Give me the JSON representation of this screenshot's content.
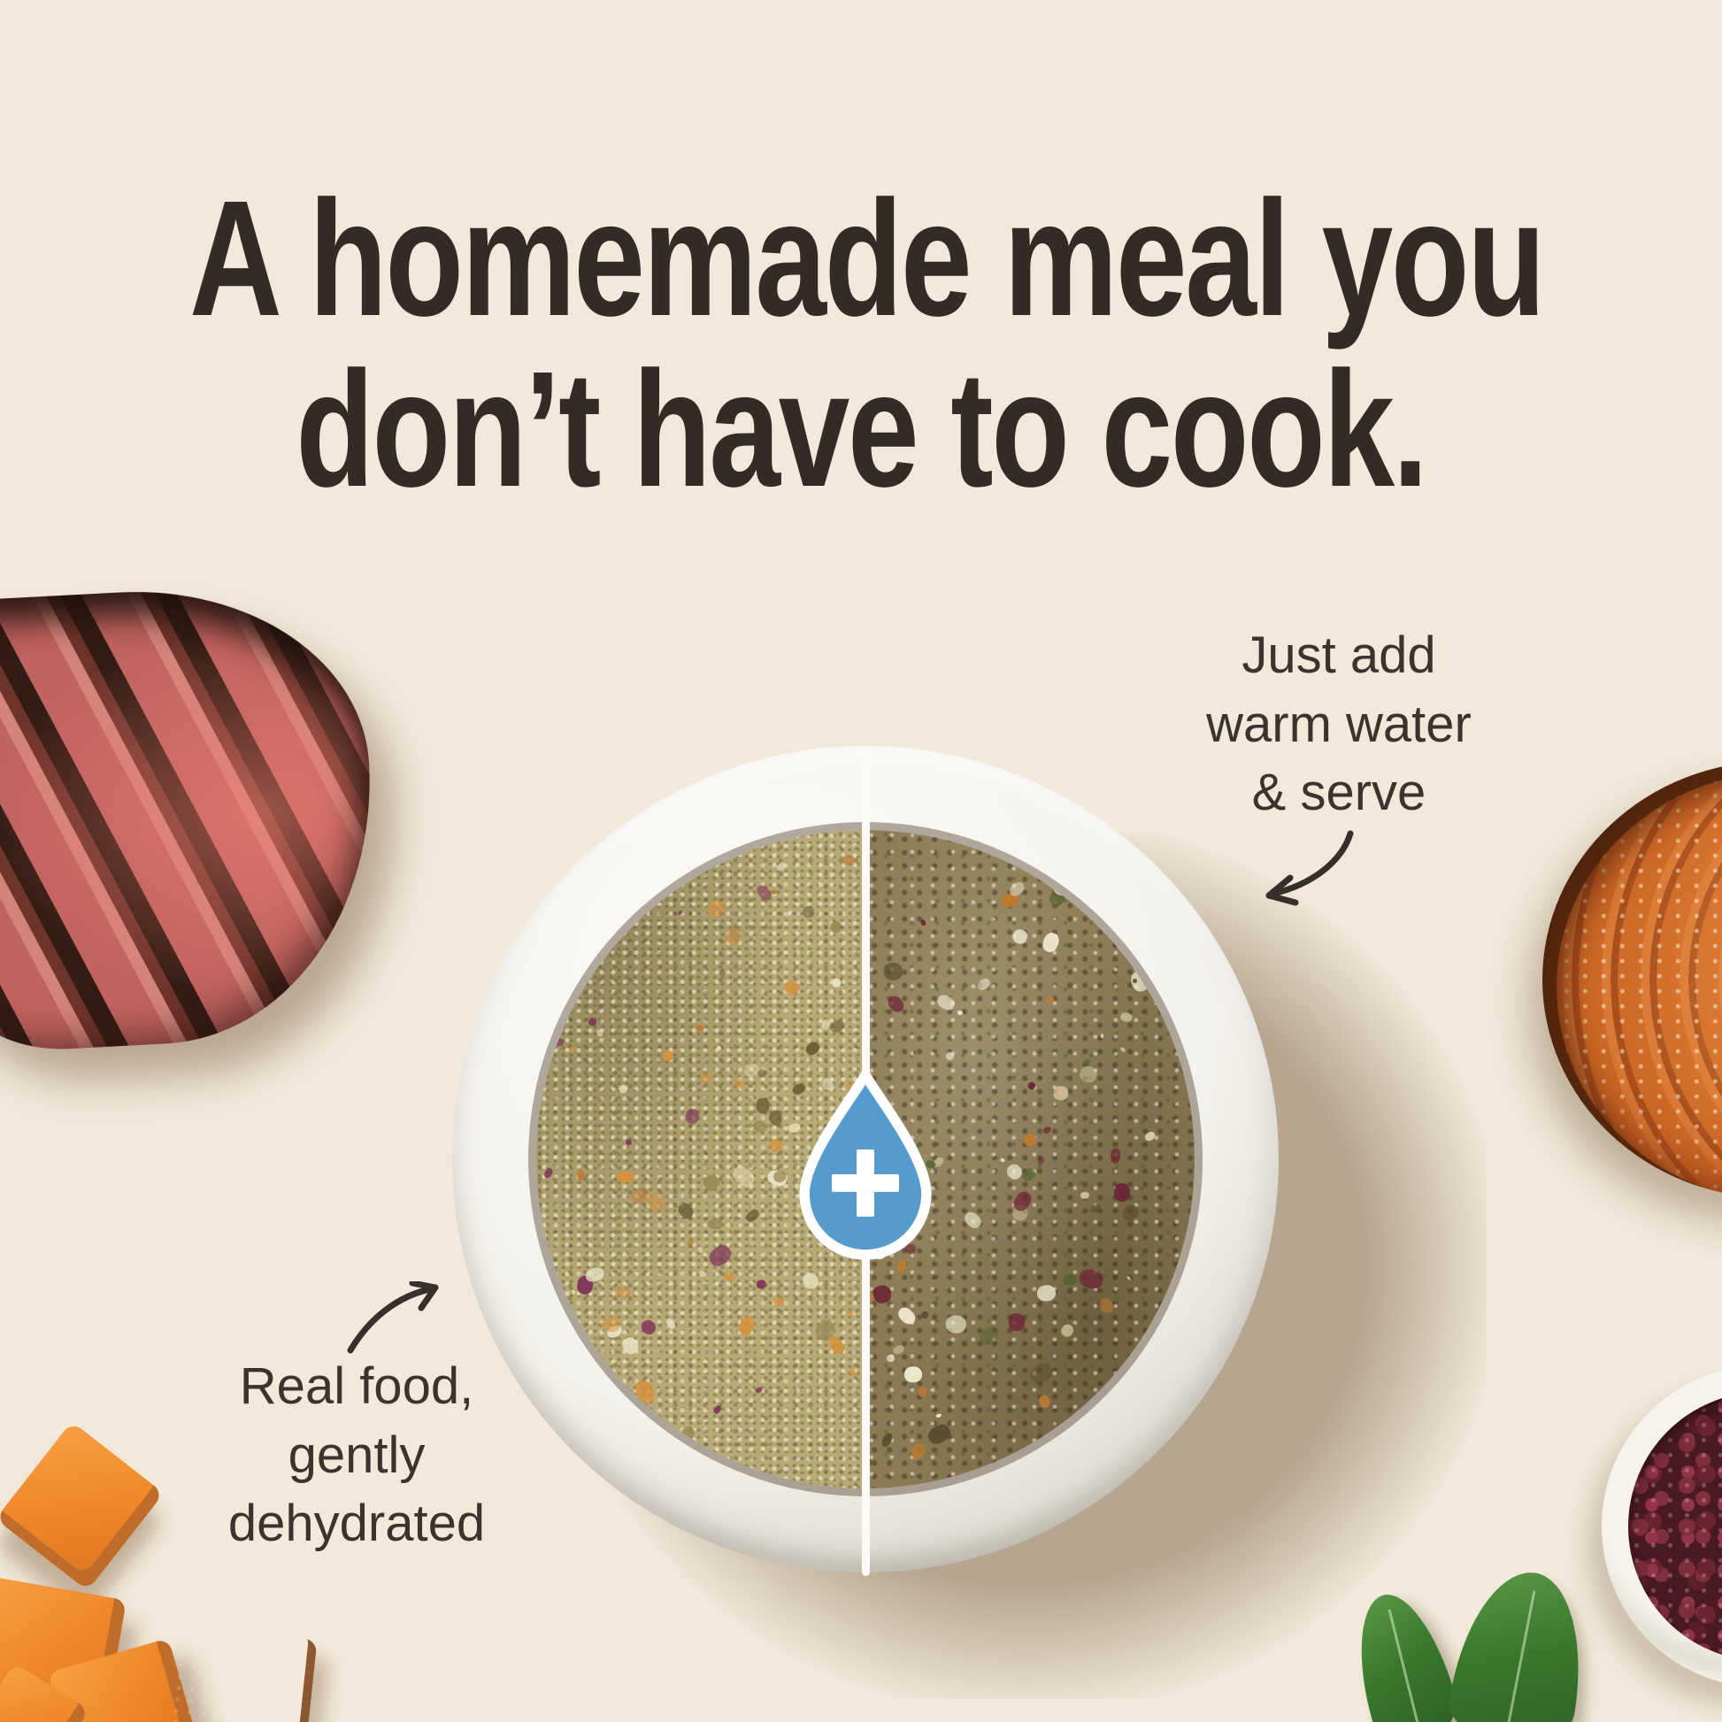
{
  "headline": {
    "line1": "A homemade meal you",
    "line2": "don’t have to cook."
  },
  "annotations": {
    "add_water": {
      "lines": [
        "Just add",
        "warm water",
        "& serve"
      ]
    },
    "real_food": {
      "lines": [
        "Real food,",
        "gently",
        "dehydrated"
      ]
    }
  },
  "icons": {
    "water_drop": "water-drop-icon",
    "plus": "plus-icon",
    "arrow_to_wet_half": "curved-arrow-down-left-icon",
    "arrow_to_dry_half": "curved-arrow-up-right-icon"
  },
  "colors": {
    "background": "#f2e9da",
    "headline_text": "#342b26",
    "annotation_text": "#3b332d",
    "arrow_stroke": "#35302b",
    "water_drop_blue": "#569bce",
    "divider_white": "#fbfaf6"
  }
}
